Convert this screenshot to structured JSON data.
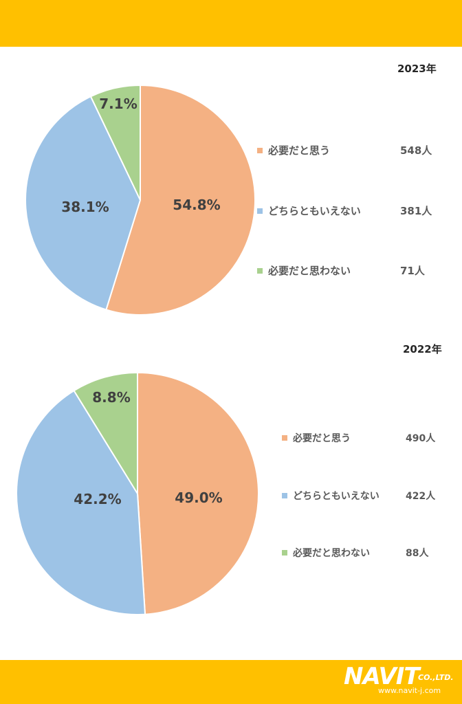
{
  "theme": {
    "band": "#FFC000",
    "slice_colors": [
      "#F4B183",
      "#9DC3E6",
      "#A9D18E"
    ],
    "slice_border": "#ffffff"
  },
  "chart_data": [
    {
      "type": "pie",
      "title": "2023年",
      "categories": [
        "必要だと思う",
        "どちらともいえない",
        "必要だと思わない"
      ],
      "values": [
        54.8,
        38.1,
        7.1
      ],
      "value_labels": [
        "54.8%",
        "38.1%",
        "7.1%"
      ],
      "counts": [
        "548人",
        "381人",
        "71人"
      ],
      "legend_position": "right"
    },
    {
      "type": "pie",
      "title": "2022年",
      "categories": [
        "必要だと思う",
        "どちらともいえない",
        "必要だと思わない"
      ],
      "values": [
        49.0,
        42.2,
        8.8
      ],
      "value_labels": [
        "49.0%",
        "42.2%",
        "8.8%"
      ],
      "counts": [
        "490人",
        "422人",
        "88人"
      ],
      "legend_position": "right"
    }
  ],
  "footer": {
    "logo_text": "NAVIT",
    "company_suffix": "CO.,LTD.",
    "url": "www.navit-j.com"
  }
}
